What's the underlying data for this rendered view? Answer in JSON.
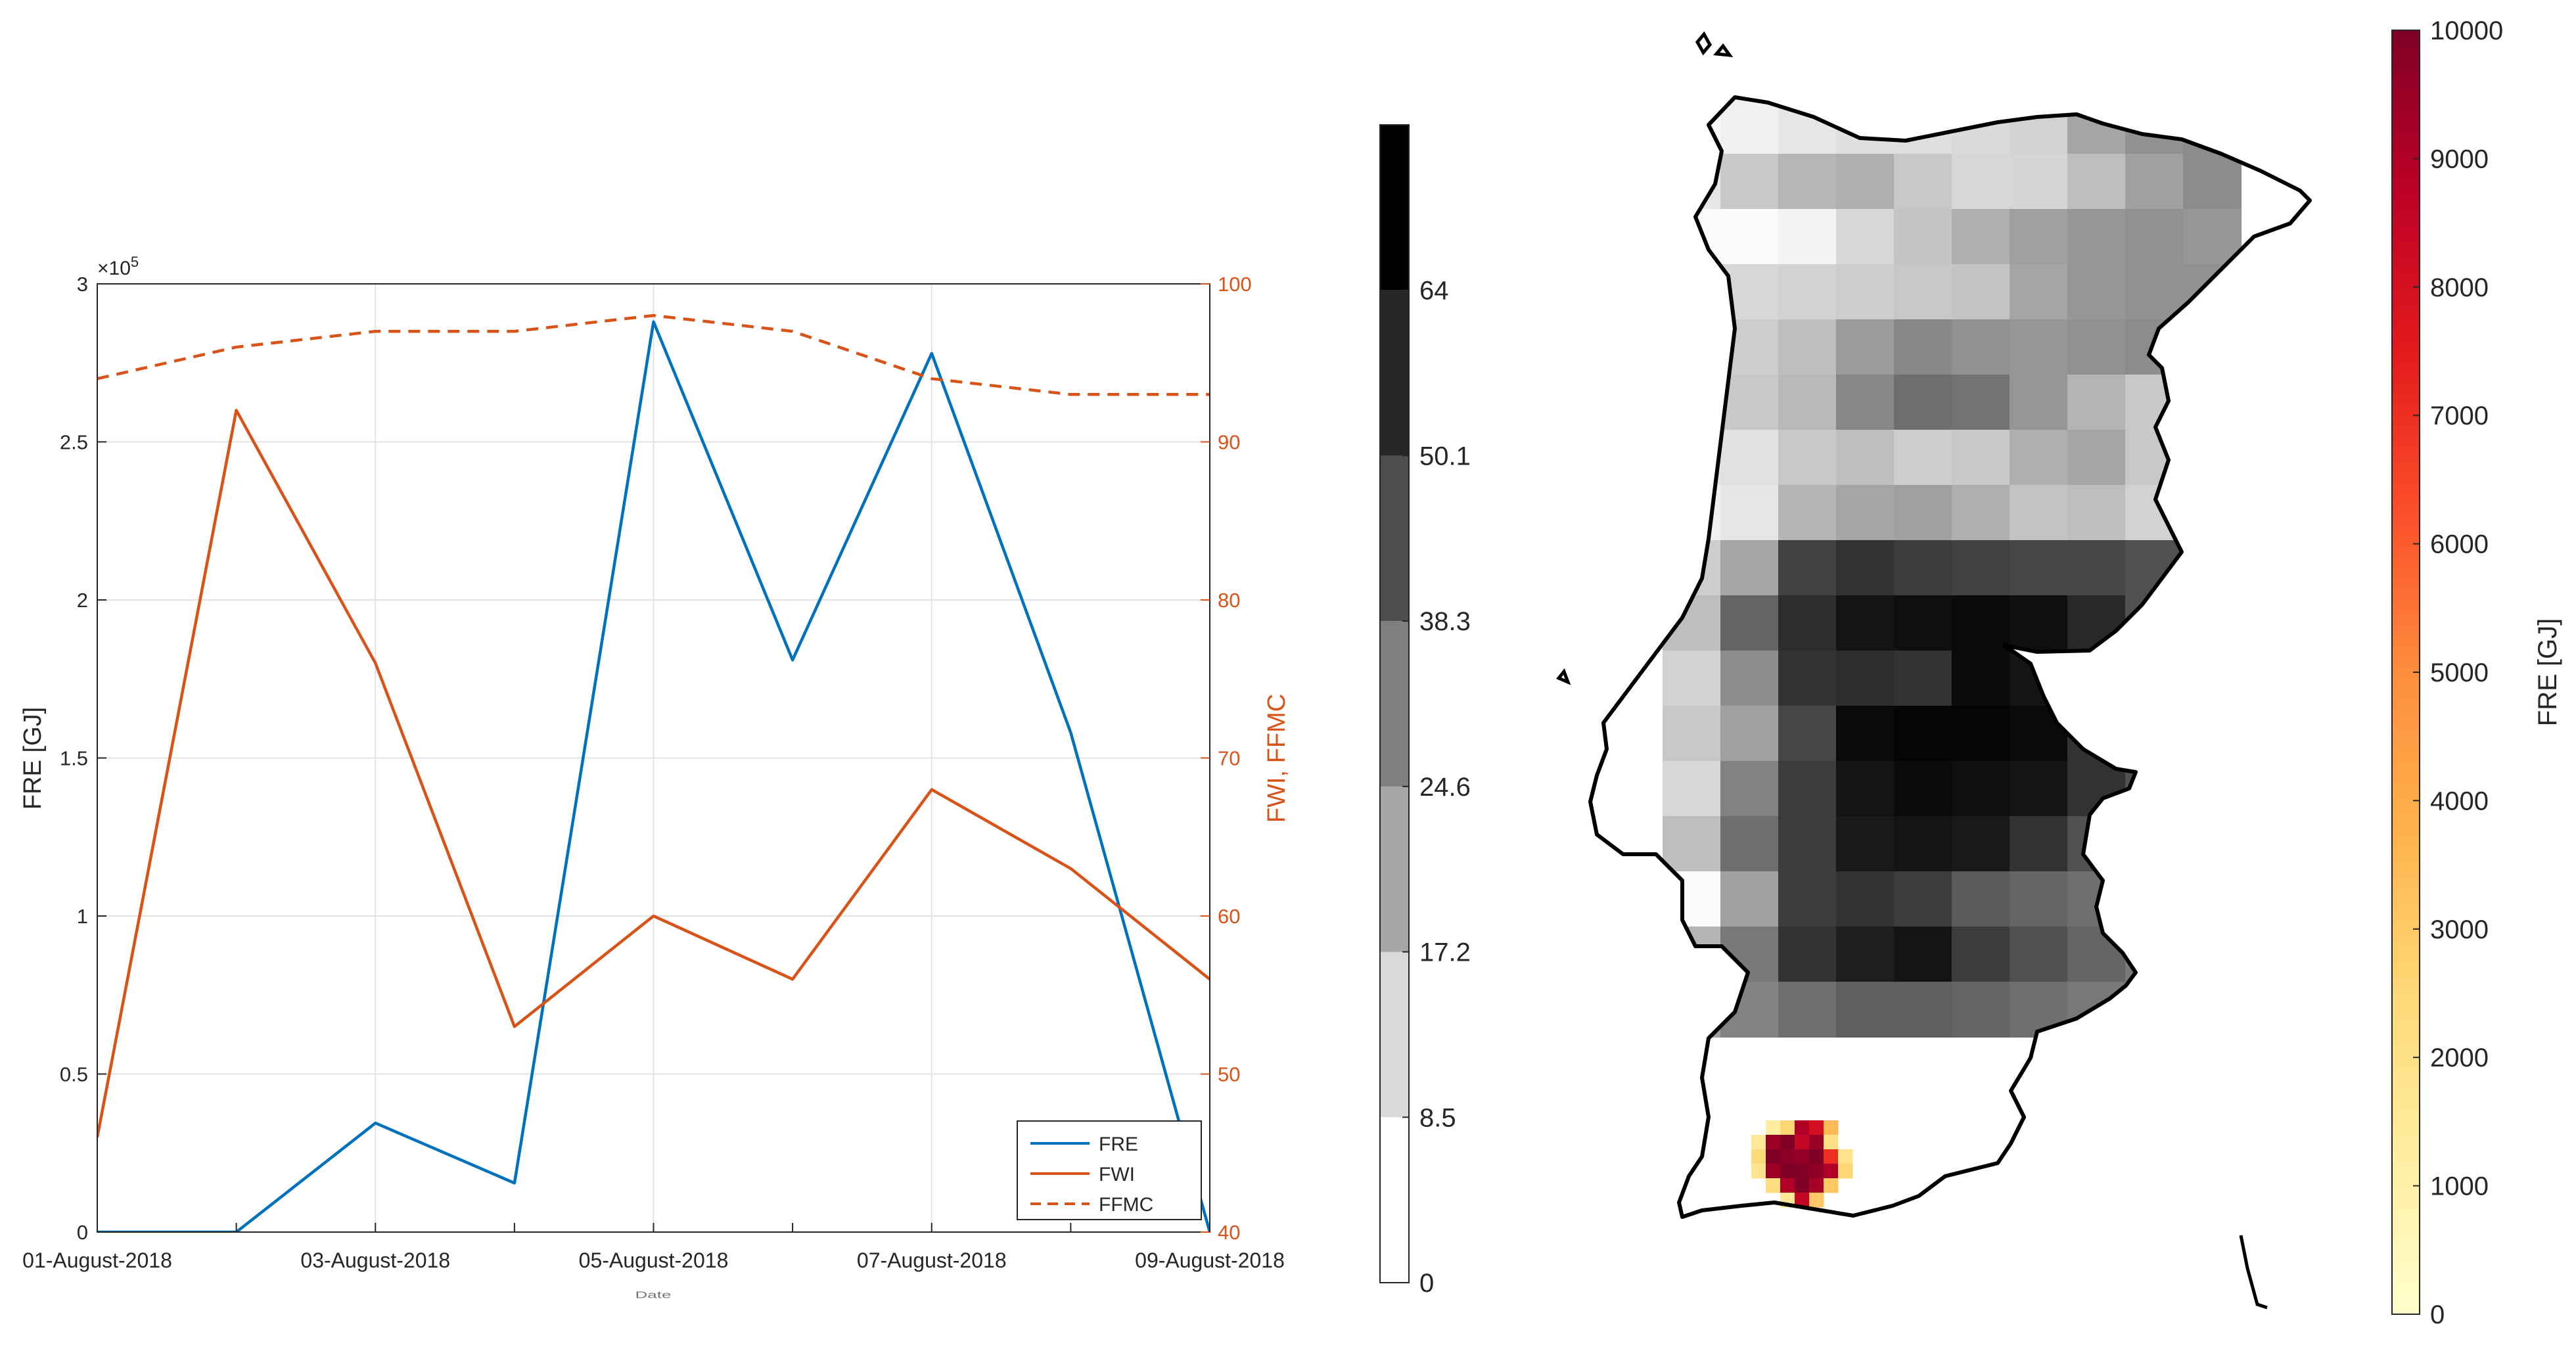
{
  "chart_data": [
    {
      "type": "line",
      "xlabel": "",
      "x_axis_fragment": "Date",
      "x": [
        "01-August-2018",
        "02-August-2018",
        "03-August-2018",
        "04-August-2018",
        "05-August-2018",
        "06-August-2018",
        "07-August-2018",
        "08-August-2018",
        "09-August-2018"
      ],
      "x_tick_labels": [
        "01-August-2018",
        "03-August-2018",
        "05-August-2018",
        "07-August-2018",
        "09-August-2018"
      ],
      "grid": true,
      "legend_position": "bottom-right",
      "left_axis": {
        "label": "FRE [GJ]",
        "ylim": [
          0,
          300000
        ],
        "ticks": [
          0,
          0.5,
          1,
          1.5,
          2,
          2.5,
          3
        ],
        "multiplier_base": "×10",
        "multiplier_exp": "5",
        "color": "#262626"
      },
      "right_axis": {
        "label": "FWI, FFMC",
        "ylim": [
          40,
          100
        ],
        "ticks": [
          40,
          50,
          60,
          70,
          80,
          90,
          100
        ],
        "color": "#D95319"
      },
      "series": [
        {
          "name": "FRE",
          "axis": "left",
          "style": "solid",
          "color": "#0072BD",
          "values": [
            0,
            0,
            34500,
            15500,
            288000,
            181000,
            278000,
            158000,
            0
          ]
        },
        {
          "name": "FWI",
          "axis": "right",
          "style": "solid",
          "color": "#D95319",
          "values": [
            46,
            92,
            76,
            53,
            60,
            56,
            68,
            63,
            56
          ]
        },
        {
          "name": "FFMC",
          "axis": "right",
          "style": "dashed",
          "color": "#D95319",
          "values": [
            94,
            96,
            97,
            97,
            98,
            97,
            94,
            93,
            93
          ]
        }
      ]
    },
    {
      "type": "heatmap",
      "title": "",
      "colorbar_grey": {
        "ticks": [
          "0",
          "8.5",
          "17.2",
          "24.6",
          "38.3",
          "50.1",
          "64"
        ],
        "bins": [
          {
            "from": 0,
            "to": 8.5,
            "color": "#ffffff"
          },
          {
            "from": 8.5,
            "to": 17.2,
            "color": "#d9d9d9"
          },
          {
            "from": 17.2,
            "to": 24.6,
            "color": "#a6a6a6"
          },
          {
            "from": 24.6,
            "to": 38.3,
            "color": "#7f7f7f"
          },
          {
            "from": 38.3,
            "to": 50.1,
            "color": "#4d4d4d"
          },
          {
            "from": 50.1,
            "to": 64,
            "color": "#262626"
          },
          {
            "from": 64,
            "to": 75,
            "color": "#000000"
          }
        ]
      },
      "colorbar_fre": {
        "label": "FRE [GJ]",
        "range": [
          0,
          10000
        ],
        "ticks": [
          "0",
          "1000",
          "2000",
          "3000",
          "4000",
          "5000",
          "6000",
          "7000",
          "8000",
          "9000",
          "10000"
        ],
        "colors": [
          "#ffffcc",
          "#ffeda0",
          "#fed976",
          "#feb24c",
          "#fd8d3c",
          "#fc4e2a",
          "#e31a1c",
          "#bd0026",
          "#800026"
        ]
      },
      "grid_rows_grey_levels": [
        [
          248,
          240,
          230,
          224,
          222,
          218,
          210,
          165,
          145,
          140
        ],
        [
          230,
          200,
          182,
          175,
          200,
          215,
          214,
          190,
          160,
          140
        ],
        [
          250,
          250,
          243,
          215,
          196,
          175,
          160,
          150,
          145,
          150
        ],
        [
          220,
          215,
          210,
          205,
          200,
          195,
          165,
          150,
          145,
          145
        ],
        [
          215,
          205,
          190,
          155,
          135,
          145,
          150,
          145,
          140,
          160
        ],
        [
          225,
          200,
          185,
          135,
          110,
          115,
          150,
          180,
          200,
          220
        ],
        [
          230,
          225,
          200,
          190,
          205,
          200,
          175,
          165,
          200,
          230
        ],
        [
          240,
          230,
          180,
          165,
          160,
          175,
          195,
          190,
          210,
          230
        ],
        [
          205,
          165,
          65,
          50,
          60,
          65,
          70,
          70,
          80,
          110
        ],
        [
          190,
          100,
          45,
          20,
          15,
          10,
          15,
          40,
          80,
          110
        ],
        [
          210,
          140,
          50,
          45,
          50,
          10,
          20,
          45,
          80,
          110
        ],
        [
          200,
          160,
          70,
          10,
          5,
          5,
          10,
          50,
          80,
          110
        ],
        [
          215,
          130,
          60,
          20,
          10,
          15,
          20,
          50,
          80,
          110
        ],
        [
          190,
          110,
          60,
          25,
          20,
          25,
          50,
          80,
          100,
          120
        ],
        [
          250,
          160,
          60,
          50,
          60,
          90,
          100,
          110,
          120,
          130
        ],
        [
          180,
          120,
          50,
          30,
          20,
          60,
          80,
          100,
          120,
          130
        ],
        [
          160,
          130,
          110,
          95,
          95,
          100,
          110,
          120,
          130,
          140
        ]
      ],
      "fre_hotspot_values": [
        [
          0,
          1200,
          2600,
          9000,
          8000,
          3500,
          0
        ],
        [
          1500,
          9500,
          10000,
          8500,
          9500,
          2000,
          0
        ],
        [
          2400,
          10000,
          9800,
          9600,
          10000,
          7000,
          1800
        ],
        [
          1800,
          9400,
          10000,
          9900,
          9700,
          9000,
          2600
        ],
        [
          0,
          2200,
          9000,
          10000,
          9200,
          3000,
          0
        ],
        [
          0,
          0,
          1500,
          8500,
          3000,
          0,
          0
        ]
      ]
    }
  ]
}
